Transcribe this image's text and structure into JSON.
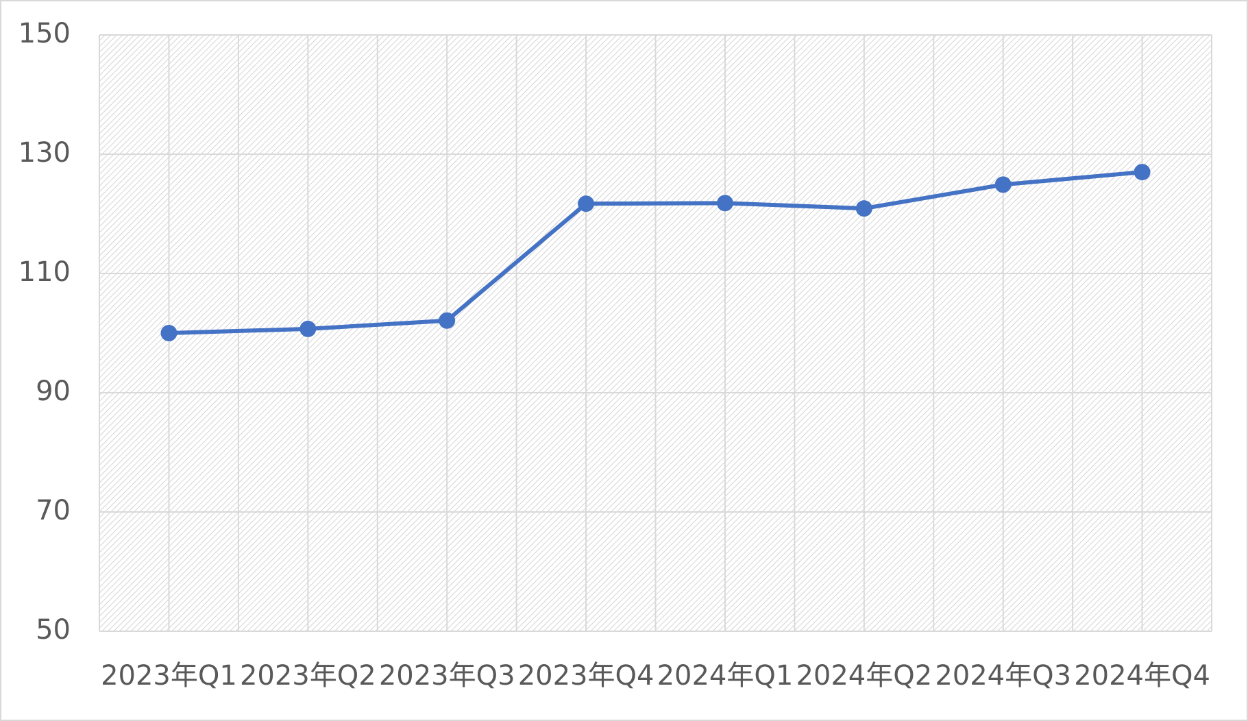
{
  "chart_data": {
    "type": "line",
    "categories": [
      "2023年Q1",
      "2023年Q2",
      "2023年Q3",
      "2023年Q4",
      "2024年Q1",
      "2024年Q2",
      "2024年Q3",
      "2024年Q4"
    ],
    "series": [
      {
        "color": "#4472c4",
        "values": [
          100,
          100.7,
          102.1,
          121.7,
          121.8,
          120.9,
          124.9,
          127.0
        ]
      }
    ],
    "ylim": [
      50,
      150
    ],
    "yticks": [
      50,
      70,
      90,
      110,
      130,
      150
    ],
    "grid": true
  }
}
